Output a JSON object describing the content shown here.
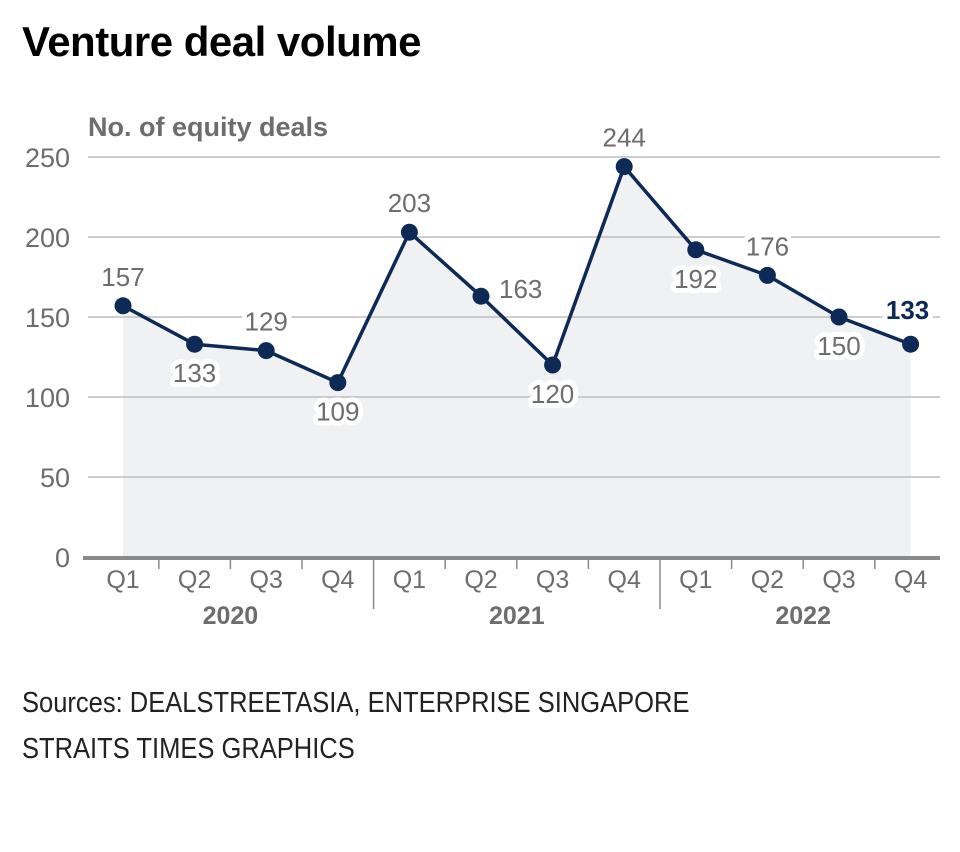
{
  "chart_data": {
    "type": "line",
    "title": "Venture deal volume",
    "ylabel": "No. of equity deals",
    "xlabel": "",
    "ylim": [
      0,
      250
    ],
    "yticks": [
      0,
      50,
      100,
      150,
      200,
      250
    ],
    "grid": true,
    "area_fill": true,
    "categories": [
      "Q1",
      "Q2",
      "Q3",
      "Q4",
      "Q1",
      "Q2",
      "Q3",
      "Q4",
      "Q1",
      "Q2",
      "Q3",
      "Q4"
    ],
    "groups": [
      {
        "label": "2020",
        "count": 4
      },
      {
        "label": "2021",
        "count": 4
      },
      {
        "label": "2022",
        "count": 4
      }
    ],
    "series": [
      {
        "name": "No. of equity deals",
        "values": [
          157,
          133,
          129,
          109,
          203,
          163,
          120,
          244,
          192,
          176,
          150,
          133
        ],
        "label_positions": [
          "above",
          "below",
          "above",
          "below",
          "above",
          "right",
          "below",
          "above",
          "below",
          "above",
          "below",
          "above"
        ],
        "highlight_last": true
      }
    ],
    "colors": {
      "line": "#0d2a57",
      "area": "#f0f1f2",
      "grid": "#bdbdbd",
      "axis": "#8a8a8a",
      "label": "#6d6d6d",
      "highlight_label": "#0d2a57"
    }
  },
  "sources": [
    "Sources: DEALSTREETASIA, ENTERPRISE SINGAPORE",
    "STRAITS TIMES GRAPHICS"
  ]
}
